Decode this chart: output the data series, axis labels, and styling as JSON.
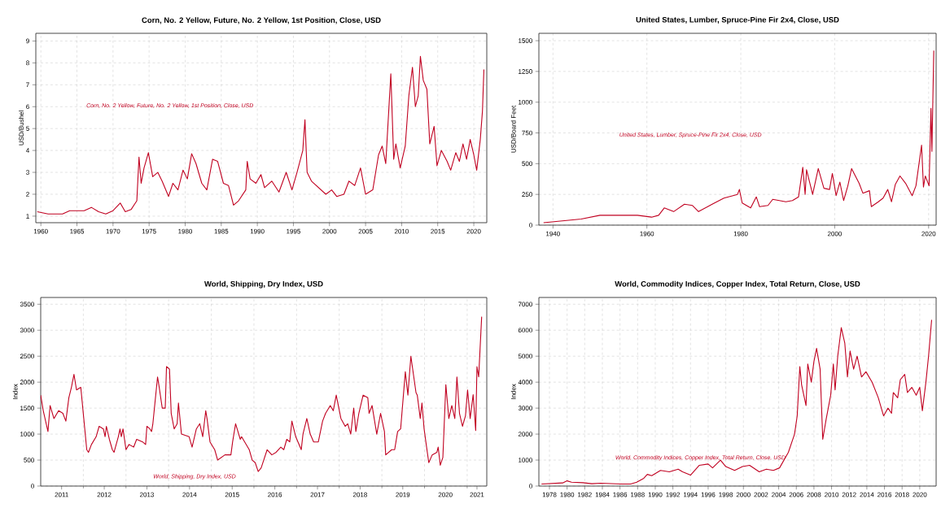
{
  "chart_data": [
    {
      "type": "line",
      "title": "Corn, No. 2 Yellow, Future, No. 2 Yellow, 1st Position, Close, USD",
      "ylabel": "USD/Bushel",
      "grid": true,
      "xlim": [
        1959.3,
        2021.8
      ],
      "xticks": [
        1960,
        1965,
        1970,
        1975,
        1980,
        1985,
        1990,
        1995,
        2000,
        2005,
        2010,
        2015,
        2020
      ],
      "ylim": [
        0.7,
        9.35
      ],
      "yticks": [
        1,
        2,
        3,
        4,
        5,
        6,
        7,
        8,
        9
      ],
      "x": [
        1959.5,
        1961,
        1963,
        1964,
        1966,
        1967,
        1968,
        1969,
        1970,
        1971,
        1971.7,
        1972.5,
        1973.3,
        1973.6,
        1973.9,
        1974.3,
        1974.9,
        1975.5,
        1976.2,
        1976.8,
        1977.7,
        1978.3,
        1979,
        1979.7,
        1980.3,
        1980.9,
        1981.5,
        1982.3,
        1983,
        1983.8,
        1984.5,
        1985.3,
        1986,
        1986.7,
        1987.4,
        1988.4,
        1988.6,
        1989,
        1989.8,
        1990.5,
        1991,
        1992,
        1993,
        1994,
        1994.8,
        1995.5,
        1996.3,
        1996.6,
        1996.9,
        1997.5,
        1998.5,
        1999.5,
        2000.3,
        2001,
        2002,
        2002.7,
        2003.5,
        2004.3,
        2005,
        2006,
        2006.8,
        2007.3,
        2007.8,
        2008.5,
        2008.9,
        2009.2,
        2009.8,
        2010.5,
        2011,
        2011.5,
        2011.9,
        2012.3,
        2012.6,
        2013,
        2013.5,
        2013.9,
        2014.5,
        2014.9,
        2015.5,
        2016.3,
        2016.8,
        2017.5,
        2018,
        2018.5,
        2019,
        2019.5,
        2020,
        2020.4,
        2020.9,
        2021.2,
        2021.4
      ],
      "series": [
        {
          "name": "Corn, No. 2 Yellow, Future, No. 2 Yellow, 1st Position, Close, USD",
          "color": "#c00020",
          "values": [
            1.2,
            1.1,
            1.1,
            1.25,
            1.25,
            1.4,
            1.2,
            1.1,
            1.25,
            1.6,
            1.2,
            1.3,
            1.7,
            3.7,
            2.5,
            3.2,
            3.9,
            2.8,
            3.0,
            2.6,
            1.9,
            2.5,
            2.2,
            3.1,
            2.7,
            3.85,
            3.4,
            2.5,
            2.2,
            3.6,
            3.5,
            2.5,
            2.4,
            1.5,
            1.7,
            2.2,
            3.5,
            2.7,
            2.5,
            2.9,
            2.3,
            2.6,
            2.1,
            3.0,
            2.2,
            3.0,
            4.0,
            5.4,
            3.0,
            2.6,
            2.3,
            2.0,
            2.2,
            1.9,
            2.0,
            2.6,
            2.4,
            3.2,
            2.0,
            2.2,
            3.8,
            4.2,
            3.4,
            7.5,
            3.6,
            4.3,
            3.2,
            4.2,
            6.5,
            7.8,
            6.0,
            6.5,
            8.3,
            7.2,
            6.8,
            4.3,
            5.1,
            3.3,
            4.0,
            3.5,
            3.1,
            3.9,
            3.5,
            4.3,
            3.6,
            4.5,
            3.8,
            3.1,
            4.5,
            5.8,
            7.7
          ]
        }
      ]
    },
    {
      "type": "line",
      "title": "United States, Lumber, Spruce-Pine Fir 2x4, Close, USD",
      "ylabel": "USD/Board Feet",
      "grid": true,
      "xlim": [
        1937,
        2021.6
      ],
      "xticks": [
        1940,
        1960,
        1980,
        2000,
        2020
      ],
      "ylim": [
        0,
        1560
      ],
      "yticks": [
        0,
        250,
        500,
        750,
        1000,
        1250,
        1500
      ],
      "x": [
        1938,
        1946,
        1950,
        1958,
        1961,
        1962.5,
        1963.7,
        1965.7,
        1968,
        1969.7,
        1971,
        1973.9,
        1976.4,
        1979.3,
        1979.7,
        1980.3,
        1982.1,
        1983.3,
        1984,
        1985.8,
        1986.8,
        1989.6,
        1991,
        1992.3,
        1993.2,
        1993.7,
        1994,
        1995.3,
        1996.5,
        1997.7,
        1998.9,
        1999.5,
        2000.3,
        2001.1,
        2001.9,
        2002.8,
        2003.6,
        2004.4,
        2005.2,
        2006,
        2007.4,
        2007.8,
        2009.3,
        2010.3,
        2011.3,
        2012.1,
        2012.9,
        2013.9,
        2015.1,
        2016.5,
        2017.3,
        2018.5,
        2018.9,
        2019.3,
        2020.1,
        2020.5,
        2020.7,
        2021.1
      ],
      "series": [
        {
          "name": "United States, Lumber, Spruce-Pine Fir 2x4, Close, USD",
          "color": "#c00020",
          "values": [
            20,
            50,
            80,
            80,
            65,
            80,
            140,
            110,
            170,
            160,
            110,
            170,
            220,
            250,
            290,
            180,
            140,
            230,
            150,
            160,
            210,
            190,
            200,
            230,
            470,
            250,
            450,
            250,
            460,
            300,
            290,
            420,
            240,
            350,
            200,
            320,
            460,
            400,
            340,
            260,
            280,
            150,
            190,
            220,
            290,
            190,
            330,
            400,
            340,
            240,
            320,
            650,
            310,
            400,
            320,
            950,
            600,
            1420
          ]
        }
      ]
    },
    {
      "type": "line",
      "title": "World, Shipping, Dry Index, USD",
      "ylabel": "Index",
      "grid": true,
      "xlim": [
        2011.0,
        2021.46
      ],
      "xticks": [
        {
          "value": 2011.49,
          "label": "2011"
        },
        {
          "value": 2012,
          "label": null
        },
        {
          "value": 2012.49,
          "label": "2012"
        },
        {
          "value": 2013,
          "label": null
        },
        {
          "value": 2013.49,
          "label": "2013"
        },
        {
          "value": 2014,
          "label": null
        },
        {
          "value": 2014.49,
          "label": "2014"
        },
        {
          "value": 2015,
          "label": null
        },
        {
          "value": 2015.49,
          "label": "2015"
        },
        {
          "value": 2016,
          "label": null
        },
        {
          "value": 2016.49,
          "label": "2016"
        },
        {
          "value": 2017,
          "label": null
        },
        {
          "value": 2017.49,
          "label": "2017"
        },
        {
          "value": 2018,
          "label": null
        },
        {
          "value": 2018.49,
          "label": "2018"
        },
        {
          "value": 2019,
          "label": null
        },
        {
          "value": 2019.49,
          "label": "2019"
        },
        {
          "value": 2020,
          "label": null
        },
        {
          "value": 2020.49,
          "label": "2020"
        },
        {
          "value": 2021,
          "label": null
        },
        {
          "value": 2021.23,
          "label": "2021"
        }
      ],
      "ylim": [
        0,
        3630
      ],
      "yticks": [
        0,
        500,
        1000,
        1500,
        2000,
        2500,
        3000,
        3500
      ],
      "x": [
        2011.0,
        2011.06,
        2011.17,
        2011.22,
        2011.31,
        2011.42,
        2011.52,
        2011.59,
        2011.66,
        2011.72,
        2011.78,
        2011.84,
        2011.94,
        2012.01,
        2012.08,
        2012.12,
        2012.19,
        2012.3,
        2012.37,
        2012.47,
        2012.51,
        2012.54,
        2012.61,
        2012.68,
        2012.72,
        2012.82,
        2012.86,
        2012.89,
        2012.93,
        2013.0,
        2013.07,
        2013.18,
        2013.25,
        2013.39,
        2013.46,
        2013.49,
        2013.56,
        2013.6,
        2013.63,
        2013.74,
        2013.77,
        2013.85,
        2013.92,
        2013.95,
        2014.02,
        2014.06,
        2014.13,
        2014.2,
        2014.23,
        2014.3,
        2014.48,
        2014.55,
        2014.65,
        2014.73,
        2014.8,
        2014.87,
        2014.9,
        2014.97,
        2015.08,
        2015.15,
        2015.32,
        2015.46,
        2015.5,
        2015.57,
        2015.68,
        2015.71,
        2015.89,
        2015.96,
        2016.03,
        2016.1,
        2016.17,
        2016.31,
        2016.42,
        2016.52,
        2016.63,
        2016.7,
        2016.77,
        2016.84,
        2016.89,
        2016.98,
        2017.11,
        2017.15,
        2017.24,
        2017.32,
        2017.4,
        2017.51,
        2017.61,
        2017.68,
        2017.79,
        2017.86,
        2017.93,
        2018.04,
        2018.14,
        2018.2,
        2018.27,
        2018.34,
        2018.39,
        2018.46,
        2018.56,
        2018.67,
        2018.7,
        2018.77,
        2018.88,
        2018.97,
        2019.06,
        2019.09,
        2019.23,
        2019.3,
        2019.37,
        2019.44,
        2019.55,
        2019.61,
        2019.68,
        2019.8,
        2019.83,
        2019.9,
        2019.94,
        2019.99,
        2020.04,
        2020.1,
        2020.18,
        2020.29,
        2020.32,
        2020.37,
        2020.43,
        2020.5,
        2020.57,
        2020.64,
        2020.71,
        2020.76,
        2020.82,
        2020.89,
        2020.96,
        2021.01,
        2021.07,
        2021.14,
        2021.2,
        2021.23,
        2021.27,
        2021.34
      ],
      "series": [
        {
          "name": "World, Shipping, Dry Index, USD",
          "color": "#c00020",
          "values": [
            1750,
            1450,
            1050,
            1550,
            1300,
            1450,
            1400,
            1250,
            1700,
            1900,
            2150,
            1850,
            1900,
            1300,
            700,
            650,
            800,
            950,
            1150,
            1100,
            950,
            1150,
            900,
            700,
            650,
            950,
            1100,
            950,
            1100,
            700,
            800,
            750,
            900,
            850,
            800,
            1150,
            1100,
            1050,
            1200,
            2100,
            1950,
            1500,
            1500,
            2300,
            2250,
            1400,
            1100,
            1200,
            1600,
            1000,
            950,
            750,
            1100,
            1200,
            950,
            1450,
            1300,
            850,
            700,
            500,
            600,
            600,
            850,
            1200,
            900,
            950,
            700,
            500,
            450,
            280,
            350,
            700,
            600,
            650,
            750,
            700,
            900,
            850,
            1250,
            950,
            700,
            1000,
            1300,
            1000,
            850,
            850,
            1250,
            1400,
            1550,
            1450,
            1750,
            1300,
            1150,
            1200,
            1000,
            1500,
            1050,
            1400,
            1750,
            1700,
            1400,
            1550,
            1000,
            1400,
            1050,
            600,
            700,
            700,
            1050,
            1100,
            2200,
            1750,
            2500,
            1800,
            1750,
            1300,
            1600,
            1100,
            800,
            450,
            600,
            650,
            750,
            400,
            550,
            1950,
            1300,
            1550,
            1300,
            2100,
            1400,
            1150,
            1350,
            1850,
            1300,
            1760,
            1070,
            2300,
            2100,
            3260
          ]
        }
      ]
    },
    {
      "type": "line",
      "title": "World, Commodity Indices, Copper Index, Total Return, Close, USD",
      "ylabel": "Index",
      "grid": true,
      "xlim": [
        1976.8,
        2021.86
      ],
      "xticks": [
        1978,
        1980,
        1982,
        1984,
        1986,
        1988,
        1990,
        1992,
        1994,
        1996,
        1998,
        2000,
        2002,
        2004,
        2006,
        2008,
        2010,
        2012,
        2014,
        2016,
        2018,
        2020
      ],
      "ylim": [
        0,
        7260
      ],
      "yticks": [
        0,
        1000,
        2000,
        3000,
        4000,
        5000,
        6000,
        7000
      ],
      "x": [
        1977.1,
        1979.5,
        1980,
        1980.5,
        1981.8,
        1982.8,
        1983.8,
        1986.2,
        1987.2,
        1987.9,
        1988.7,
        1989.1,
        1989.6,
        1990.6,
        1991.6,
        1992.6,
        1993.1,
        1994,
        1995,
        1996,
        1996.5,
        1997.4,
        1998,
        1999,
        1999.9,
        2000.7,
        2001.8,
        2002.6,
        2003.4,
        2004.1,
        2005.1,
        2005.8,
        2006.1,
        2006.4,
        2006.6,
        2007.1,
        2007.3,
        2007.7,
        2008,
        2008.3,
        2008.7,
        2009,
        2009.4,
        2009.9,
        2010.2,
        2010.4,
        2010.7,
        2011.1,
        2011.5,
        2011.8,
        2012.1,
        2012.5,
        2012.9,
        2013.4,
        2013.9,
        2014.6,
        2015.3,
        2015.9,
        2016.4,
        2016.8,
        2017,
        2017.5,
        2017.8,
        2018.3,
        2018.6,
        2019.1,
        2019.6,
        2020,
        2020.3,
        2020.7,
        2021,
        2021.35
      ],
      "series": [
        {
          "name": "World, Commodity Indices, Copper Index, Total Return, Close, USD",
          "color": "#c00020",
          "values": [
            80,
            120,
            200,
            150,
            130,
            90,
            110,
            80,
            80,
            150,
            300,
            450,
            400,
            600,
            550,
            650,
            550,
            420,
            800,
            850,
            700,
            1000,
            750,
            600,
            750,
            800,
            550,
            650,
            600,
            700,
            1300,
            2000,
            2700,
            4600,
            3900,
            3100,
            4700,
            4000,
            4800,
            5300,
            4500,
            1800,
            2600,
            3500,
            4700,
            3700,
            5000,
            6100,
            5500,
            4200,
            5200,
            4500,
            5000,
            4200,
            4400,
            4000,
            3400,
            2700,
            3000,
            2800,
            3600,
            3400,
            4100,
            4300,
            3600,
            3800,
            3500,
            3800,
            2900,
            4000,
            5000,
            6400
          ]
        }
      ]
    }
  ]
}
